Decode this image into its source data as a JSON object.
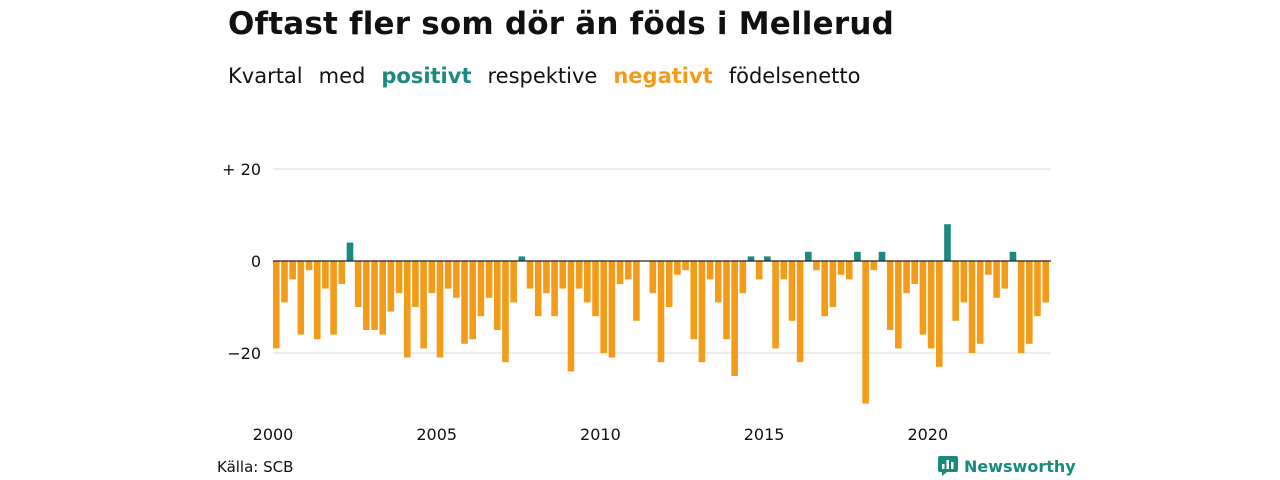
{
  "header": {
    "title": "Oftast fler som dör än föds i Mellerud",
    "subtitle_parts": [
      "Kvartal",
      "med",
      "positivt",
      "respektive",
      "negativt",
      "födelsenetto"
    ]
  },
  "footer": {
    "source": "Källa: SCB",
    "brand": "Newsworthy"
  },
  "colors": {
    "positive": "#1b8a7e",
    "negative": "#f39c1a",
    "gridline": "#d9d9d9",
    "zero_line": "#222222",
    "text": "#111111"
  },
  "chart_data": {
    "type": "bar",
    "title": "Oftast fler som dör än föds i Mellerud",
    "subtitle": "Kvartal med positivt respektive negativt födelsenetto",
    "frequency": "quarterly",
    "x_start": "2000 Q1",
    "xlabel": "",
    "ylabel": "",
    "ylim": [
      -33,
      22
    ],
    "y_ticks": [
      {
        "value": 20,
        "label": "+ 20"
      },
      {
        "value": 0,
        "label": "0"
      },
      {
        "value": -20,
        "label": "−20"
      }
    ],
    "x_ticks": [
      {
        "year": 2000,
        "label": "2000"
      },
      {
        "year": 2005,
        "label": "2005"
      },
      {
        "year": 2010,
        "label": "2010"
      },
      {
        "year": 2015,
        "label": "2015"
      },
      {
        "year": 2020,
        "label": "2020"
      }
    ],
    "grid": true,
    "legend": "none",
    "values": [
      -19,
      -9,
      -4,
      -16,
      -2,
      -17,
      -6,
      -16,
      -5,
      4,
      -10,
      -15,
      -15,
      -16,
      -11,
      -7,
      -21,
      -10,
      -19,
      -7,
      -21,
      -6,
      -8,
      -18,
      -17,
      -12,
      -8,
      -15,
      -22,
      -9,
      1,
      -6,
      -12,
      -7,
      -12,
      -6,
      -24,
      -6,
      -9,
      -12,
      -20,
      -21,
      -5,
      -4,
      -13,
      0,
      -7,
      -22,
      -10,
      -3,
      -2,
      -17,
      -22,
      -4,
      -9,
      -17,
      -25,
      -7,
      1,
      -4,
      1,
      -19,
      -4,
      -13,
      -22,
      2,
      -2,
      -12,
      -10,
      -3,
      -4,
      2,
      -31,
      -2,
      2,
      -15,
      -19,
      -7,
      -5,
      -16,
      -19,
      -23,
      8,
      -13,
      -9,
      -20,
      -18,
      -3,
      -8,
      -6,
      2,
      -20,
      -18,
      -12,
      -9
    ]
  }
}
